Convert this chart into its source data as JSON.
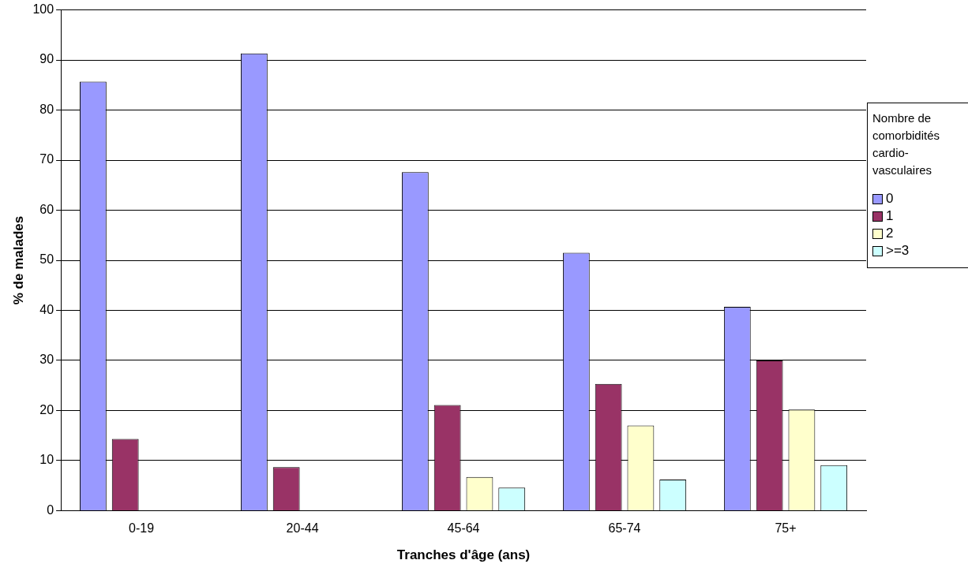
{
  "chart_data": {
    "type": "bar",
    "xlabel": "Tranches d'âge (ans)",
    "ylabel": "% de malades",
    "legend_title": "Nombre de comorbidités cardio-vasculaires",
    "categories": [
      "0-19",
      "20-44",
      "45-64",
      "65-74",
      "75+"
    ],
    "series": [
      {
        "name": "0",
        "color": "#9999ff",
        "values": [
          85.7,
          91.3,
          67.6,
          51.5,
          40.7
        ]
      },
      {
        "name": "1",
        "color": "#993366",
        "values": [
          14.3,
          8.7,
          21.1,
          25.3,
          30.0
        ]
      },
      {
        "name": "2",
        "color": "#ffffcc",
        "values": [
          null,
          null,
          6.7,
          17.0,
          20.2
        ]
      },
      {
        "name": ">=3",
        "color": "#ccffff",
        "values": [
          null,
          null,
          4.6,
          6.2,
          9.1
        ]
      }
    ],
    "ylim": [
      0,
      100
    ],
    "yticks": [
      0,
      10,
      20,
      30,
      40,
      50,
      60,
      70,
      80,
      90,
      100
    ],
    "grid": "y",
    "legend": "right"
  }
}
